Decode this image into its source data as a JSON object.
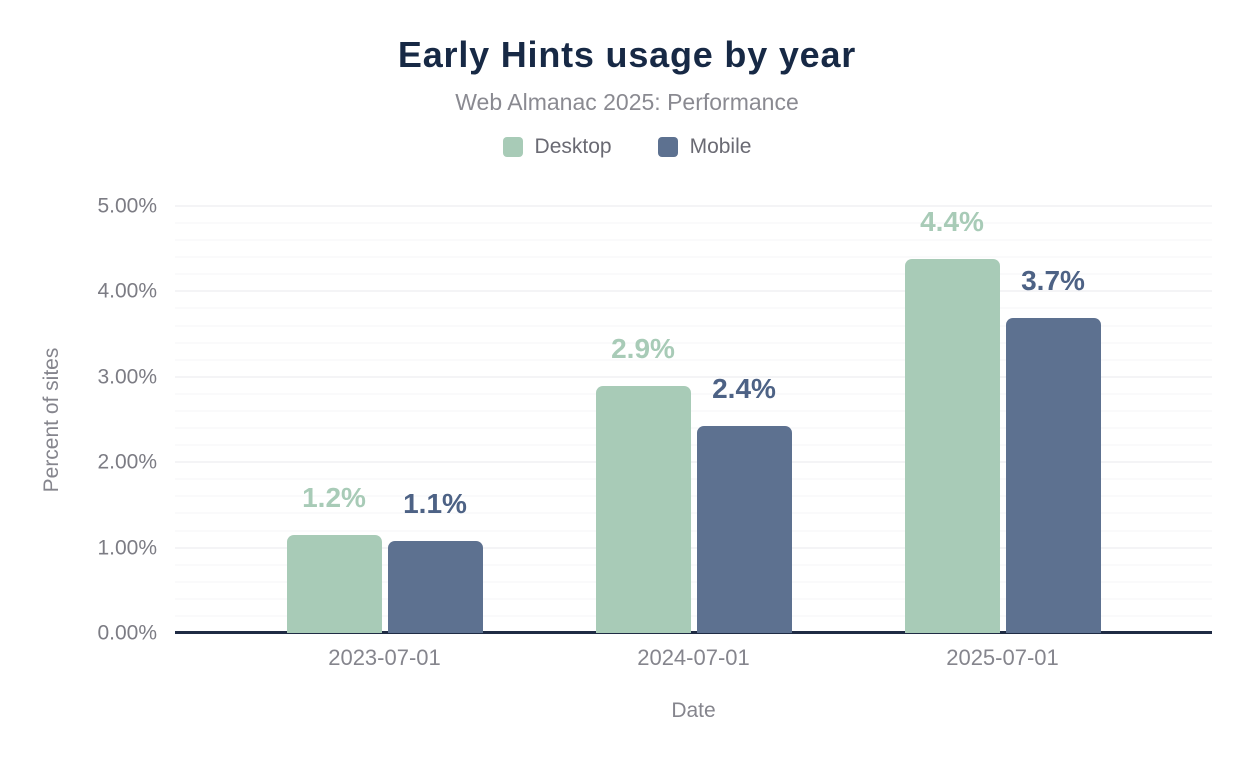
{
  "header": {
    "title": "Early Hints usage by year",
    "subtitle": "Web Almanac 2025: Performance"
  },
  "legend": {
    "items": [
      {
        "label": "Desktop",
        "color": "#a8cbb7"
      },
      {
        "label": "Mobile",
        "color": "#5d7190"
      }
    ]
  },
  "colors": {
    "title": "#172945",
    "subtitle": "#8a8a91",
    "axis_line": "#1f2b44",
    "tick_label": "#7c7c84",
    "desktop": "#a8cbb7",
    "mobile": "#5d7190"
  },
  "chart_data": {
    "type": "bar",
    "title": "Early Hints usage by year",
    "subtitle": "Web Almanac 2025: Performance",
    "categories": [
      "2023-07-01",
      "2024-07-01",
      "2025-07-01"
    ],
    "series": [
      {
        "name": "Desktop",
        "color": "#a8cbb7",
        "label_color": "#a8cbb7",
        "values": [
          1.15,
          2.89,
          4.38
        ],
        "data_labels": [
          "1.2%",
          "2.9%",
          "4.4%"
        ]
      },
      {
        "name": "Mobile",
        "color": "#5d7190",
        "label_color": "#4d6285",
        "values": [
          1.08,
          2.42,
          3.69
        ],
        "data_labels": [
          "1.1%",
          "2.4%",
          "3.7%"
        ]
      }
    ],
    "xlabel": "Date",
    "ylabel": "Percent of sites",
    "ylim": [
      0,
      5
    ],
    "yticks": {
      "values": [
        0,
        1,
        2,
        3,
        4,
        5
      ],
      "labels": [
        "0.00%",
        "1.00%",
        "2.00%",
        "3.00%",
        "4.00%",
        "5.00%"
      ]
    },
    "grid": {
      "minor_step": 0.2,
      "major_step": 1,
      "minor_color": "#f6f6f7",
      "major_color": "#eaeaee"
    },
    "legend_position": "top"
  }
}
